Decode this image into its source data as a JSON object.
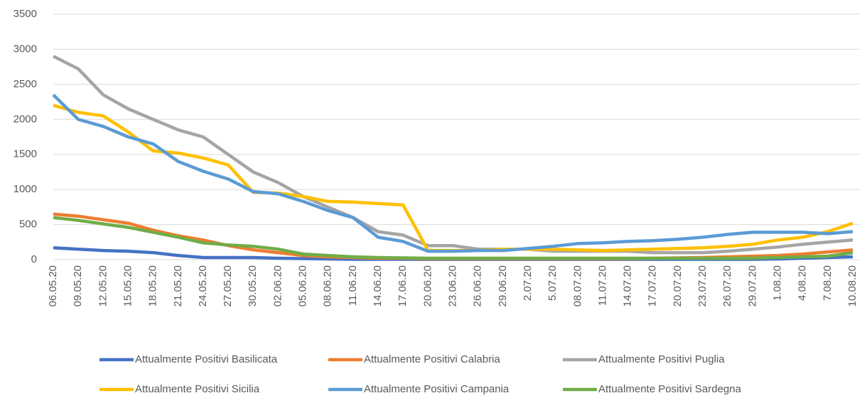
{
  "chart_data": {
    "type": "line",
    "categories": [
      "06.05.20",
      "09.05.20",
      "12.05.20",
      "15.05.20",
      "18.05.20",
      "21.05.20",
      "24.05.20",
      "27.05.20",
      "30.05.20",
      "02.06.20",
      "05.06.20",
      "08.06.20",
      "11.06.20",
      "14.06.20",
      "17.06.20",
      "20.06.20",
      "23.06.20",
      "26.06.20",
      "29.06.20",
      "2.07.20",
      "5.07.20",
      "08.07.20",
      "11.07.20",
      "14.07.20",
      "17.07.20",
      "20.07.20",
      "23.07.20",
      "26.07.20",
      "29.07.20",
      "1.08.20",
      "4.08.20",
      "7.08.20",
      "10.08.20"
    ],
    "series": [
      {
        "name": "Attualmente Positivi Basilicata",
        "color": "#4472c4",
        "values": [
          170,
          150,
          130,
          120,
          100,
          60,
          30,
          30,
          30,
          20,
          15,
          10,
          5,
          5,
          5,
          5,
          5,
          5,
          5,
          5,
          5,
          5,
          5,
          5,
          5,
          5,
          5,
          5,
          5,
          10,
          20,
          30,
          40
        ]
      },
      {
        "name": "Attualmente Positivi Calabria",
        "color": "#ed7d31",
        "values": [
          650,
          620,
          570,
          520,
          420,
          340,
          280,
          200,
          140,
          100,
          60,
          40,
          30,
          20,
          20,
          15,
          15,
          15,
          15,
          15,
          15,
          15,
          15,
          15,
          20,
          25,
          30,
          40,
          50,
          60,
          80,
          110,
          140
        ]
      },
      {
        "name": "Attualmente Positivi Puglia",
        "color": "#a5a5a5",
        "values": [
          2900,
          2720,
          2350,
          2150,
          2000,
          1850,
          1750,
          1500,
          1250,
          1100,
          900,
          750,
          600,
          400,
          350,
          200,
          200,
          150,
          150,
          150,
          120,
          120,
          120,
          120,
          100,
          100,
          100,
          120,
          150,
          180,
          220,
          250,
          280
        ]
      },
      {
        "name": "Attualmente Positivi Sicilia",
        "color": "#ffc000",
        "values": [
          2200,
          2100,
          2050,
          1820,
          1550,
          1520,
          1450,
          1350,
          960,
          950,
          900,
          830,
          820,
          800,
          780,
          130,
          130,
          130,
          150,
          150,
          150,
          140,
          130,
          140,
          150,
          160,
          170,
          190,
          220,
          280,
          320,
          400,
          520
        ]
      },
      {
        "name": "Attualmente Positivi Campania",
        "color": "#5b9bd5",
        "values": [
          2350,
          2000,
          1900,
          1750,
          1650,
          1400,
          1260,
          1150,
          970,
          940,
          830,
          700,
          600,
          320,
          260,
          120,
          120,
          130,
          130,
          160,
          190,
          230,
          240,
          260,
          270,
          290,
          320,
          360,
          390,
          390,
          390,
          370,
          400
        ]
      },
      {
        "name": "Attualmente Positivi Sardegna",
        "color": "#70ad47",
        "values": [
          600,
          560,
          510,
          460,
          390,
          320,
          240,
          210,
          190,
          150,
          80,
          60,
          40,
          30,
          25,
          20,
          20,
          20,
          20,
          20,
          20,
          20,
          20,
          20,
          20,
          20,
          20,
          20,
          20,
          30,
          40,
          50,
          100
        ]
      }
    ],
    "ylim": [
      0,
      3500
    ],
    "yticks": [
      0,
      500,
      1000,
      1500,
      2000,
      2500,
      3000,
      3500
    ],
    "grid": true
  }
}
